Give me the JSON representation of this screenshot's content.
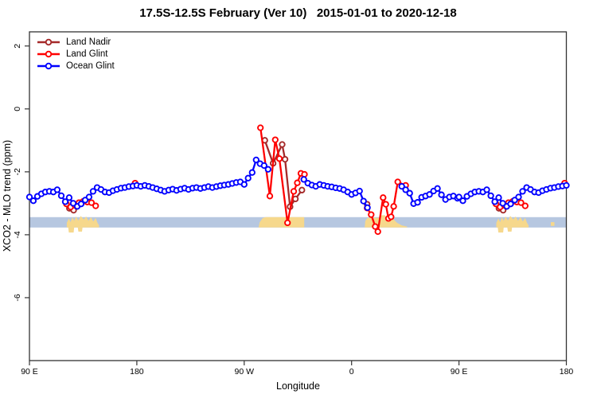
{
  "chart_data": {
    "type": "line",
    "title": "17.5S-12.5S February (Ver 10)   2015-01-01 to 2020-12-18",
    "xlabel": "Longitude",
    "ylabel": "XCO2 - MLO trend (ppm)",
    "xlim": [
      90,
      540
    ],
    "ylim": [
      -8,
      2.45
    ],
    "grid": false,
    "legend_position": "top-left-inside",
    "x_ticks": [
      {
        "value": 90,
        "label": "90 E"
      },
      {
        "value": 180,
        "label": "180"
      },
      {
        "value": 270,
        "label": "90 W"
      },
      {
        "value": 360,
        "label": "0"
      },
      {
        "value": 450,
        "label": "90 E"
      },
      {
        "value": 540,
        "label": "180"
      }
    ],
    "y_ticks": [
      {
        "value": 2,
        "label": "2"
      },
      {
        "value": 0,
        "label": "0"
      },
      {
        "value": -2,
        "label": "-2"
      },
      {
        "value": -4,
        "label": "-4"
      },
      {
        "value": -6,
        "label": "-6"
      }
    ],
    "band": {
      "color": "#b6c7e0",
      "y_top": -3.44,
      "y_bottom": -3.77
    },
    "land_regions": {
      "color": "#f6d88c",
      "polygons": [
        [
          [
            121.3,
            -3.77
          ],
          [
            121.3,
            -3.62
          ],
          [
            123,
            -3.48
          ],
          [
            124.5,
            -3.6
          ],
          [
            126,
            -3.44
          ],
          [
            127.5,
            -3.56
          ],
          [
            129,
            -3.42
          ],
          [
            131,
            -3.55
          ],
          [
            133,
            -3.4
          ],
          [
            135.5,
            -3.52
          ],
          [
            137.5,
            -3.42
          ],
          [
            139.5,
            -3.56
          ],
          [
            141.5,
            -3.44
          ],
          [
            143.5,
            -3.58
          ],
          [
            145.5,
            -3.46
          ],
          [
            147,
            -3.62
          ],
          [
            148.3,
            -3.7
          ],
          [
            148.3,
            -3.77
          ]
        ],
        [
          [
            122.5,
            -3.77
          ],
          [
            127.5,
            -3.77
          ],
          [
            127,
            -3.93
          ],
          [
            123,
            -3.93
          ]
        ],
        [
          [
            130.5,
            -3.77
          ],
          [
            134.5,
            -3.77
          ],
          [
            134,
            -3.9
          ],
          [
            131,
            -3.9
          ]
        ],
        [
          [
            282,
            -3.77
          ],
          [
            283,
            -3.6
          ],
          [
            285.5,
            -3.47
          ],
          [
            288,
            -3.44
          ],
          [
            320.3,
            -3.44
          ],
          [
            320.3,
            -3.77
          ]
        ],
        [
          [
            371,
            -3.77
          ],
          [
            371.5,
            -3.56
          ],
          [
            373.5,
            -3.46
          ],
          [
            383,
            -3.46
          ],
          [
            384,
            -3.38
          ],
          [
            388,
            -3.38
          ],
          [
            389,
            -3.46
          ],
          [
            395,
            -3.5
          ],
          [
            398,
            -3.62
          ],
          [
            402,
            -3.7
          ],
          [
            406.5,
            -3.74
          ],
          [
            406.5,
            -3.77
          ]
        ],
        [
          [
            481.3,
            -3.77
          ],
          [
            481.3,
            -3.62
          ],
          [
            483,
            -3.48
          ],
          [
            484.5,
            -3.6
          ],
          [
            486,
            -3.44
          ],
          [
            487.5,
            -3.56
          ],
          [
            489,
            -3.42
          ],
          [
            491,
            -3.55
          ],
          [
            493,
            -3.4
          ],
          [
            495.5,
            -3.52
          ],
          [
            497.5,
            -3.42
          ],
          [
            499.5,
            -3.56
          ],
          [
            501.5,
            -3.44
          ],
          [
            503.5,
            -3.58
          ],
          [
            505.5,
            -3.46
          ],
          [
            507,
            -3.62
          ],
          [
            508.3,
            -3.7
          ],
          [
            508.3,
            -3.77
          ]
        ],
        [
          [
            482.5,
            -3.77
          ],
          [
            487.5,
            -3.77
          ],
          [
            487,
            -3.93
          ],
          [
            483,
            -3.93
          ]
        ],
        [
          [
            490.5,
            -3.77
          ],
          [
            494.5,
            -3.77
          ],
          [
            494,
            -3.9
          ],
          [
            491,
            -3.9
          ]
        ],
        [
          [
            527,
            -3.6
          ],
          [
            530,
            -3.6
          ],
          [
            530,
            -3.72
          ],
          [
            527,
            -3.72
          ]
        ]
      ]
    },
    "series": [
      {
        "name": "Land Nadir",
        "color": "#a52a2a",
        "marker": "open-circle",
        "segments": [
          [
            [
              123.5,
              -3.16
            ],
            [
              127,
              -3.22
            ]
          ],
          [
            [
              287.3,
              -1.0
            ],
            [
              294.2,
              -1.73
            ],
            [
              301.8,
              -1.13
            ],
            [
              304.2,
              -1.6
            ],
            [
              308.4,
              -3.11
            ],
            [
              312.9,
              -2.86
            ],
            [
              318.4,
              -2.58
            ]
          ],
          [
            [
              373,
              -3.03
            ]
          ],
          [
            [
              483.5,
              -3.16
            ],
            [
              487,
              -3.22
            ]
          ]
        ]
      },
      {
        "name": "Land Glint",
        "color": "#ff0000",
        "marker": "open-circle",
        "segments": [
          [
            [
              121,
              -3.02
            ],
            [
              124.5,
              -3.12
            ],
            [
              128,
              -3.06
            ],
            [
              131.5,
              -2.98
            ],
            [
              135,
              -2.94
            ],
            [
              138.5,
              -2.96
            ],
            [
              142,
              -2.98
            ],
            [
              145.5,
              -3.08
            ]
          ],
          [
            [
              178.5,
              -2.36
            ]
          ],
          [
            [
              283.6,
              -0.6
            ],
            [
              291.5,
              -2.77
            ],
            [
              296,
              -0.98
            ],
            [
              299.5,
              -1.58
            ],
            [
              306.3,
              -3.62
            ],
            [
              311.5,
              -2.62
            ],
            [
              314.5,
              -2.35
            ],
            [
              317.5,
              -2.05
            ],
            [
              320.5,
              -2.08
            ]
          ],
          [
            [
              373,
              -3.15
            ],
            [
              376.4,
              -3.36
            ],
            [
              379.8,
              -3.74
            ],
            [
              382,
              -3.9
            ],
            [
              386.4,
              -2.82
            ],
            [
              388.7,
              -3.03
            ],
            [
              390.9,
              -3.48
            ],
            [
              393.1,
              -3.43
            ],
            [
              395.3,
              -3.1
            ],
            [
              398.7,
              -2.32
            ],
            [
              405.3,
              -2.43
            ]
          ],
          [
            [
              481,
              -3.02
            ],
            [
              484.5,
              -3.12
            ],
            [
              488,
              -3.06
            ],
            [
              491.5,
              -2.98
            ],
            [
              495,
              -2.94
            ],
            [
              498.5,
              -2.96
            ],
            [
              502,
              -2.98
            ],
            [
              505.5,
              -3.08
            ]
          ],
          [
            [
              538.5,
              -2.36
            ]
          ]
        ]
      },
      {
        "name": "Ocean Glint",
        "color": "#0000ff",
        "marker": "open-circle",
        "segments": [
          [
            [
              90,
              -2.8
            ],
            [
              93.3,
              -2.92
            ],
            [
              96.7,
              -2.78
            ],
            [
              100,
              -2.7
            ],
            [
              103.3,
              -2.64
            ],
            [
              106.7,
              -2.62
            ],
            [
              110,
              -2.64
            ],
            [
              113.3,
              -2.57
            ],
            [
              116.7,
              -2.76
            ],
            [
              120,
              -2.95
            ],
            [
              123.3,
              -2.82
            ],
            [
              126.7,
              -3.0
            ],
            [
              130,
              -3.1
            ],
            [
              133.3,
              -3.02
            ],
            [
              136.7,
              -2.9
            ],
            [
              140,
              -2.8
            ],
            [
              143.3,
              -2.62
            ],
            [
              146.7,
              -2.5
            ],
            [
              150,
              -2.56
            ],
            [
              153.3,
              -2.64
            ],
            [
              156.7,
              -2.66
            ],
            [
              160,
              -2.6
            ],
            [
              163.3,
              -2.56
            ],
            [
              166.7,
              -2.52
            ],
            [
              170,
              -2.5
            ],
            [
              173.3,
              -2.47
            ],
            [
              176.7,
              -2.45
            ],
            [
              180,
              -2.43
            ],
            [
              183.3,
              -2.46
            ],
            [
              186.7,
              -2.43
            ],
            [
              190,
              -2.46
            ],
            [
              193.3,
              -2.5
            ],
            [
              196.7,
              -2.54
            ],
            [
              200,
              -2.58
            ],
            [
              203.3,
              -2.62
            ],
            [
              206.7,
              -2.58
            ],
            [
              210,
              -2.55
            ],
            [
              213.3,
              -2.59
            ],
            [
              216.7,
              -2.55
            ],
            [
              220,
              -2.52
            ],
            [
              223.3,
              -2.56
            ],
            [
              226.7,
              -2.52
            ],
            [
              230,
              -2.5
            ],
            [
              233.3,
              -2.53
            ],
            [
              236.7,
              -2.5
            ],
            [
              240,
              -2.47
            ],
            [
              243.3,
              -2.5
            ],
            [
              246.7,
              -2.47
            ],
            [
              250,
              -2.44
            ],
            [
              253.3,
              -2.42
            ],
            [
              256.7,
              -2.4
            ],
            [
              260,
              -2.37
            ],
            [
              263.3,
              -2.34
            ],
            [
              266.7,
              -2.32
            ],
            [
              270,
              -2.4
            ],
            [
              273.3,
              -2.2
            ],
            [
              276.7,
              -2.02
            ],
            [
              280,
              -1.62
            ],
            [
              283.3,
              -1.74
            ],
            [
              286.7,
              -1.8
            ],
            [
              290,
              -1.92
            ]
          ],
          [
            [
              320,
              -2.24
            ],
            [
              323.3,
              -2.36
            ],
            [
              326.7,
              -2.42
            ],
            [
              330,
              -2.46
            ],
            [
              333.3,
              -2.4
            ],
            [
              336.7,
              -2.43
            ],
            [
              340,
              -2.46
            ],
            [
              343.3,
              -2.48
            ],
            [
              346.7,
              -2.51
            ],
            [
              350,
              -2.53
            ],
            [
              353.3,
              -2.57
            ],
            [
              356.7,
              -2.64
            ],
            [
              360,
              -2.72
            ],
            [
              363.3,
              -2.67
            ],
            [
              366.7,
              -2.61
            ],
            [
              370,
              -2.93
            ],
            [
              373.3,
              -3.14
            ]
          ],
          [
            [
              402,
              -2.46
            ],
            [
              405.3,
              -2.57
            ],
            [
              408.7,
              -2.68
            ],
            [
              412,
              -3.01
            ],
            [
              415.3,
              -2.97
            ],
            [
              418.7,
              -2.81
            ],
            [
              422,
              -2.77
            ],
            [
              425.3,
              -2.72
            ],
            [
              428.7,
              -2.61
            ],
            [
              432,
              -2.53
            ],
            [
              435.3,
              -2.73
            ],
            [
              438.7,
              -2.88
            ],
            [
              442,
              -2.8
            ],
            [
              445.3,
              -2.77
            ],
            [
              448.7,
              -2.84
            ],
            [
              450,
              -2.8
            ],
            [
              453.3,
              -2.92
            ],
            [
              456.7,
              -2.78
            ],
            [
              460,
              -2.7
            ],
            [
              463.3,
              -2.64
            ],
            [
              466.7,
              -2.62
            ],
            [
              470,
              -2.64
            ],
            [
              473.3,
              -2.57
            ],
            [
              476.7,
              -2.76
            ],
            [
              480,
              -2.95
            ],
            [
              483.3,
              -2.82
            ],
            [
              486.7,
              -3.0
            ],
            [
              490,
              -3.1
            ],
            [
              493.3,
              -3.02
            ],
            [
              496.7,
              -2.9
            ],
            [
              500,
              -2.8
            ],
            [
              503.3,
              -2.62
            ],
            [
              506.7,
              -2.5
            ],
            [
              510,
              -2.56
            ],
            [
              513.3,
              -2.64
            ],
            [
              516.7,
              -2.66
            ],
            [
              520,
              -2.6
            ],
            [
              523.3,
              -2.56
            ],
            [
              526.7,
              -2.52
            ],
            [
              530,
              -2.5
            ],
            [
              533.3,
              -2.47
            ],
            [
              536.7,
              -2.45
            ],
            [
              540,
              -2.43
            ]
          ]
        ]
      }
    ]
  }
}
